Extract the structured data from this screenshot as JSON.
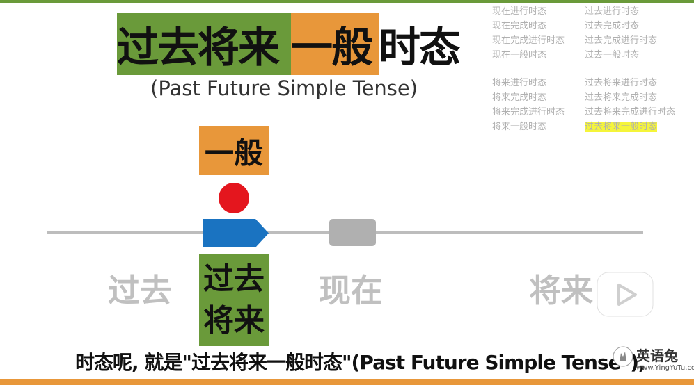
{
  "title": {
    "green_part": "过去将来",
    "orange_part": "一般",
    "plain_part": "时态",
    "subtitle": "(Past Future Simple Tense)"
  },
  "tense_list": {
    "top_left": [
      "现在进行时态",
      "现在完成时态",
      "现在完成进行时态",
      "现在一般时态"
    ],
    "top_right": [
      "过去进行时态",
      "过去完成时态",
      "过去完成进行时态",
      "过去一般时态"
    ],
    "bottom_left": [
      "将来进行时态",
      "将来完成时态",
      "将来完成进行时态",
      "将来一般时态"
    ],
    "bottom_right": [
      "过去将来进行时态",
      "过去将来完成时态",
      "过去将来完成进行时态",
      "过去将来一般时态"
    ],
    "highlight_color": "#f5f53a"
  },
  "timeline": {
    "aspect_label": "一般",
    "tense_label_line1": "过去",
    "tense_label_line2": "将来",
    "past": "过去",
    "present": "现在",
    "future": "将来"
  },
  "caption": "时态呢, 就是\"过去将来一般时态\"(Past Future Simple Tense\"),",
  "logo": {
    "name": "英语兔",
    "url": "www.YingYuTu.com"
  },
  "play_icon": "play-icon",
  "colors": {
    "green": "#6a9a3a",
    "orange": "#e8973a",
    "blue": "#1a73c1",
    "red": "#e4161e",
    "gray": "#b0b0b0"
  }
}
